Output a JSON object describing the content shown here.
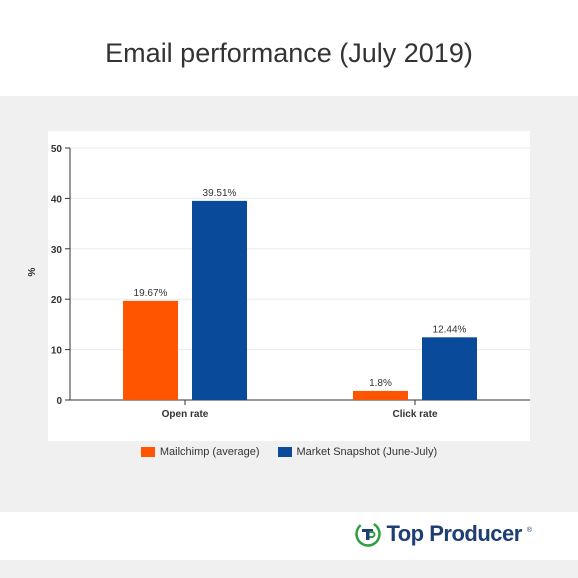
{
  "colors": {
    "series_1": "#ff5500",
    "series_2": "#0a4a9a",
    "logo_green": "#2e9e3e",
    "logo_navy": "#1f3f73"
  },
  "chart_data": {
    "type": "bar",
    "title": "Email performance (July 2019)",
    "ylabel": "%",
    "xlabel": "",
    "ylim": [
      0,
      50
    ],
    "yticks": [
      0,
      10,
      20,
      30,
      40,
      50
    ],
    "grid": true,
    "legend": "bottom",
    "categories": [
      "Open rate",
      "Click rate"
    ],
    "series": [
      {
        "name": "Mailchimp (average)",
        "values": [
          19.67,
          1.8
        ],
        "labels": [
          "19.67%",
          "1.8%"
        ]
      },
      {
        "name": "Market Snapshot (June-July)",
        "values": [
          39.51,
          12.44
        ],
        "labels": [
          "39.51%",
          "12.44%"
        ]
      }
    ]
  },
  "footer": {
    "logo_icon": "top-producer-logo-icon",
    "logo_text": "Top Producer",
    "logo_mark": "®"
  }
}
